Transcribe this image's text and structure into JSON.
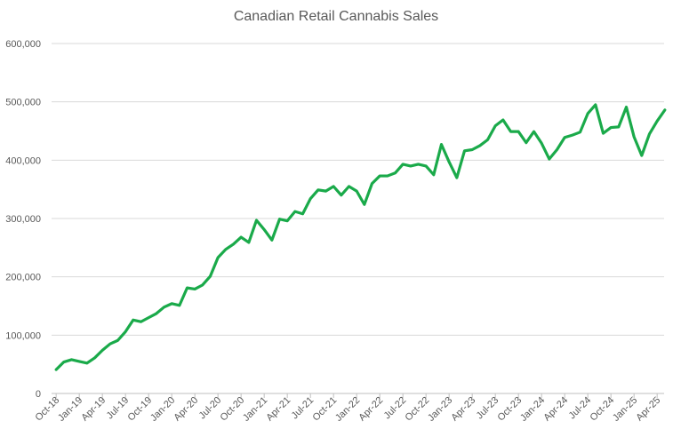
{
  "chart_data": {
    "type": "line",
    "title": "Canadian Retail Cannabis Sales",
    "xlabel": "",
    "ylabel": "",
    "ylim": [
      0,
      600000
    ],
    "yticks": [
      0,
      100000,
      200000,
      300000,
      400000,
      500000,
      600000
    ],
    "ytick_labels": [
      "0",
      "100,000",
      "200,000",
      "300,000",
      "400,000",
      "500,000",
      "600,000"
    ],
    "xtick_labels": [
      "Oct-18",
      "Jan-19",
      "Apr-19",
      "Jul-19",
      "Oct-19",
      "Jan-20",
      "Apr-20",
      "Jul-20",
      "Oct-20",
      "Jan-21",
      "Apr-21",
      "Jul-21",
      "Oct-21",
      "Jan-22",
      "Apr-22",
      "Jul-22",
      "Oct-22",
      "Jan-23",
      "Apr-23",
      "Jul-23",
      "Oct-23",
      "Jan-24",
      "Apr-24",
      "Jul-24",
      "Oct-24",
      "Jan-25",
      "Apr-25"
    ],
    "grid": true,
    "legend": "none",
    "series_color": "#1aaa4a",
    "series": [
      {
        "x": [
          "Oct-18",
          "Nov-18",
          "Dec-18",
          "Jan-19",
          "Feb-19",
          "Mar-19",
          "Apr-19",
          "May-19",
          "Jun-19",
          "Jul-19",
          "Aug-19",
          "Sep-19",
          "Oct-19",
          "Nov-19",
          "Dec-19",
          "Jan-20",
          "Feb-20",
          "Mar-20",
          "Apr-20",
          "May-20",
          "Jun-20",
          "Jul-20",
          "Aug-20",
          "Sep-20",
          "Oct-20",
          "Nov-20",
          "Dec-20",
          "Jan-21",
          "Feb-21",
          "Mar-21",
          "Apr-21",
          "May-21",
          "Jun-21",
          "Jul-21",
          "Aug-21",
          "Sep-21",
          "Oct-21",
          "Nov-21",
          "Dec-21",
          "Jan-22",
          "Feb-22",
          "Mar-22",
          "Apr-22",
          "May-22",
          "Jun-22",
          "Jul-22",
          "Aug-22",
          "Sep-22",
          "Oct-22",
          "Nov-22",
          "Dec-22",
          "Jan-23",
          "Feb-23",
          "Mar-23",
          "Apr-23",
          "May-23",
          "Jun-23",
          "Jul-23",
          "Aug-23",
          "Sep-23",
          "Oct-23",
          "Nov-23",
          "Dec-23",
          "Jan-24",
          "Feb-24",
          "Mar-24",
          "Apr-24",
          "May-24",
          "Jun-24",
          "Jul-24",
          "Aug-24",
          "Sep-24",
          "Oct-24",
          "Nov-24",
          "Dec-24",
          "Jan-25",
          "Feb-25",
          "Mar-25",
          "Apr-25",
          "May-25"
        ],
        "values": [
          41000,
          54000,
          58000,
          55000,
          52000,
          61000,
          74000,
          85000,
          91000,
          106000,
          126000,
          123000,
          130000,
          137000,
          148000,
          154000,
          151000,
          181000,
          179000,
          186000,
          201000,
          233000,
          247000,
          256000,
          268000,
          259000,
          297000,
          281000,
          263000,
          299000,
          296000,
          312000,
          308000,
          334000,
          349000,
          347000,
          355000,
          340000,
          355000,
          347000,
          324000,
          360000,
          373000,
          373000,
          378000,
          393000,
          390000,
          393000,
          390000,
          375000,
          427000,
          397000,
          370000,
          416000,
          418000,
          425000,
          435000,
          459000,
          469000,
          449000,
          449000,
          430000,
          449000,
          429000,
          402000,
          418000,
          439000,
          443000,
          448000,
          480000,
          495000,
          446000,
          456000,
          457000,
          491000,
          440000,
          408000,
          445000,
          467000,
          486000
        ]
      }
    ]
  }
}
